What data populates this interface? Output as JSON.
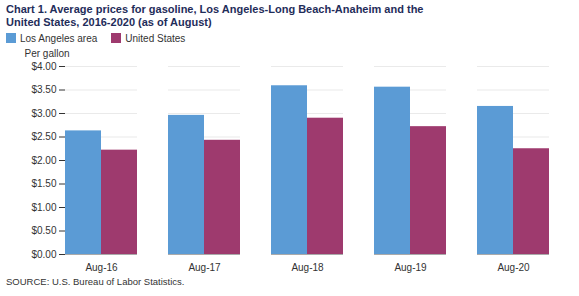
{
  "chart_data": {
    "type": "bar",
    "title": "Chart 1. Average prices for gasoline, Los Angeles-Long Beach-Anaheim and the",
    "subtitle": "United States, 2016-2020 (as of August)",
    "ylabel": "Per gallon",
    "caption": "SOURCE: U.S. Bureau of Labor Statistics.",
    "categories": [
      "Aug-16",
      "Aug-17",
      "Aug-18",
      "Aug-19",
      "Aug-20"
    ],
    "series": [
      {
        "name": "Los Angeles area",
        "color": "#5B9BD5",
        "values": [
          2.63,
          2.96,
          3.59,
          3.56,
          3.15
        ]
      },
      {
        "name": "United States",
        "color": "#9E3A6E",
        "values": [
          2.22,
          2.43,
          2.9,
          2.72,
          2.25
        ]
      }
    ],
    "ylim": [
      0.0,
      4.0
    ],
    "yticks": [
      {
        "value": 0.0,
        "label": "$0.00"
      },
      {
        "value": 0.5,
        "label": "$0.50"
      },
      {
        "value": 1.0,
        "label": "$1.00"
      },
      {
        "value": 1.5,
        "label": "$1.50"
      },
      {
        "value": 2.0,
        "label": "$2.00"
      },
      {
        "value": 2.5,
        "label": "$2.50"
      },
      {
        "value": 3.0,
        "label": "$3.00"
      },
      {
        "value": 3.5,
        "label": "$3.50"
      },
      {
        "value": 4.0,
        "label": "$4.00"
      }
    ],
    "grid": true,
    "legend": "upper left"
  }
}
